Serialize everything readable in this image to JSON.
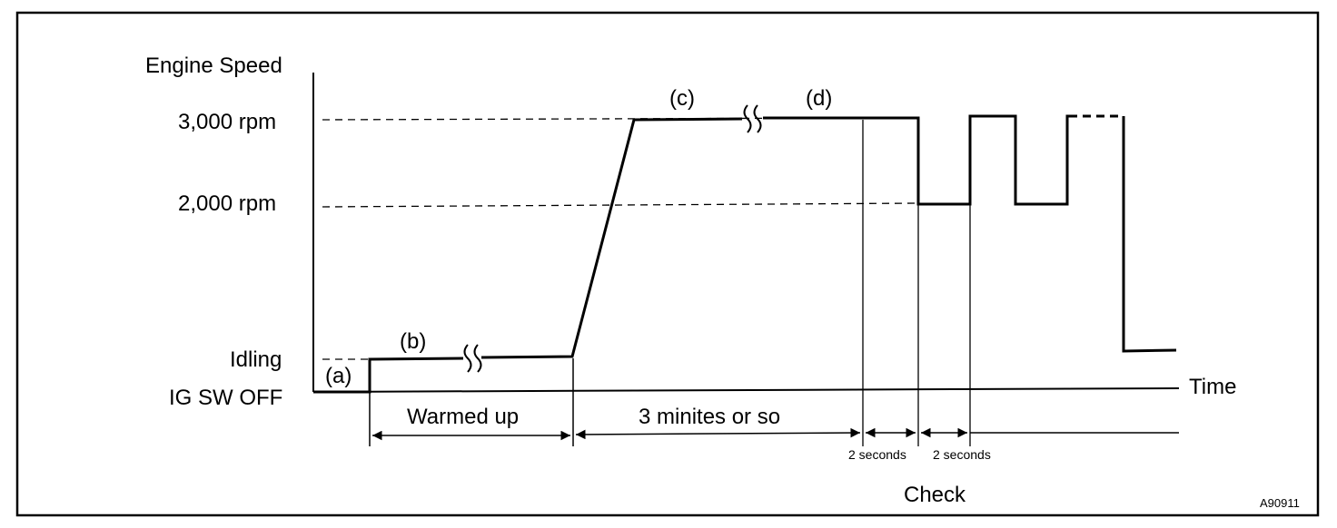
{
  "labels": {
    "y_axis_title": "Engine Speed",
    "rpm_3000": "3,000 rpm",
    "rpm_2000": "2,000 rpm",
    "idling": "Idling",
    "ig_sw_off": "IG SW OFF",
    "time": "Time",
    "point_a": "(a)",
    "point_b": "(b)",
    "point_c": "(c)",
    "point_d": "(d)",
    "warmed_up": "Warmed up",
    "three_minutes": "3 minites or so",
    "two_seconds_1": "2 seconds",
    "two_seconds_2": "2 seconds",
    "check": "Check",
    "figure_code": "A90911"
  }
}
